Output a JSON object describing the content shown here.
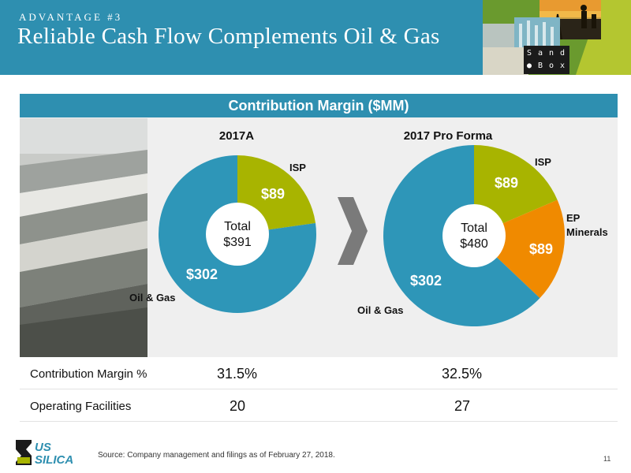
{
  "header": {
    "kicker": "ADVANTAGE #3",
    "title": "Reliable Cash Flow Complements Oil & Gas",
    "brand_color": "#2e8fb0",
    "sandbox_letters": [
      "S",
      "a",
      "n",
      "d",
      "●",
      "B",
      "o",
      "x"
    ]
  },
  "panel": {
    "title": "Contribution Margin ($MM)"
  },
  "chart_data": [
    {
      "type": "pie",
      "title": "2017A",
      "center_label": "Total",
      "center_value": "$391",
      "slices": [
        {
          "name": "ISP",
          "value": 89,
          "label": "$89",
          "color": "#a8b400"
        },
        {
          "name": "Oil & Gas",
          "value": 302,
          "label": "$302",
          "color": "#2e96b8"
        }
      ]
    },
    {
      "type": "pie",
      "title": "2017 Pro Forma",
      "center_label": "Total",
      "center_value": "$480",
      "slices": [
        {
          "name": "ISP",
          "value": 89,
          "label": "$89",
          "color": "#a8b400"
        },
        {
          "name": "EP Minerals",
          "value": 89,
          "label": "$89",
          "color": "#f08a00"
        },
        {
          "name": "Oil & Gas",
          "value": 302,
          "label": "$302",
          "color": "#2e96b8"
        }
      ]
    }
  ],
  "table": {
    "rows": [
      {
        "label": "Contribution Margin %",
        "v2017a": "31.5%",
        "vproforma": "32.5%"
      },
      {
        "label": "Operating Facilities",
        "v2017a": "20",
        "vproforma": "27"
      }
    ]
  },
  "footer": {
    "logo_line1": "US",
    "logo_line2": "SILICA",
    "source": "Source: Company management and filings as of February 27, 2018.",
    "page": "11"
  }
}
